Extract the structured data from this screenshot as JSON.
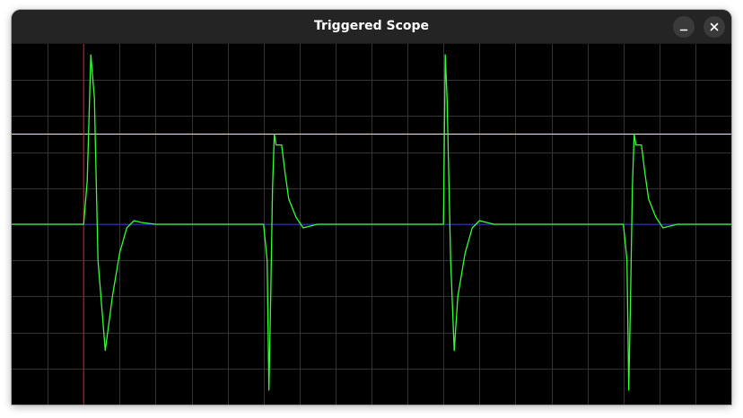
{
  "window": {
    "title": "Triggered Scope"
  },
  "titlebar_buttons": [
    {
      "name": "minimize",
      "icon": "minimize-icon"
    },
    {
      "name": "close",
      "icon": "close-icon"
    }
  ],
  "scope": {
    "background": "#000000",
    "grid_color": "#333333",
    "trace_color": "#33ff33",
    "baseline_color": "#2222ee",
    "trigger_level_color": "#ffff66",
    "trigger_position_color": "#dd1111",
    "grid_divisions": {
      "x": 20,
      "y": 10
    },
    "trigger_level_fraction": 0.75,
    "trigger_position_fraction": 0.1
  },
  "chart_data": {
    "type": "line",
    "grid": true,
    "xlim": [
      0,
      20
    ],
    "ylim": [
      -5,
      5
    ],
    "series": [
      {
        "x": [
          0,
          2.0,
          2.1,
          2.2,
          2.3,
          2.4,
          2.6,
          2.8,
          3.0,
          3.2,
          3.4,
          3.6,
          4.0,
          4.5,
          5.0,
          7.0,
          7.1,
          7.15,
          7.2,
          7.25,
          7.3,
          7.35,
          7.4,
          7.5,
          7.6,
          7.7,
          7.9,
          8.1,
          8.3,
          8.5,
          9.0,
          9.5,
          10.0,
          12.0,
          12.05,
          12.1,
          12.2,
          12.3,
          12.4,
          12.6,
          12.8,
          13.0,
          13.2,
          13.4,
          13.6,
          14.0,
          14.5,
          15.0,
          17.0,
          17.1,
          17.15,
          17.2,
          17.25,
          17.3,
          17.35,
          17.4,
          17.5,
          17.6,
          17.7,
          17.9,
          18.1,
          18.3,
          18.5,
          19.0,
          19.5,
          20.0
        ],
        "values": [
          0.0,
          0.0,
          1.2,
          4.7,
          3.5,
          -1.0,
          -3.5,
          -2.0,
          -0.8,
          -0.1,
          0.1,
          0.05,
          0.0,
          0.0,
          0.0,
          0.0,
          -1.0,
          -4.6,
          -2.0,
          1.0,
          2.5,
          2.2,
          2.2,
          2.2,
          1.4,
          0.7,
          0.2,
          -0.1,
          -0.05,
          0.0,
          0.0,
          0.0,
          0.0,
          0.0,
          4.7,
          3.5,
          -1.0,
          -3.5,
          -2.0,
          -0.8,
          -0.1,
          0.1,
          0.05,
          0.0,
          0.0,
          0.0,
          0.0,
          0.0,
          0.0,
          -1.0,
          -4.6,
          -2.0,
          1.0,
          2.5,
          2.2,
          2.2,
          2.2,
          1.4,
          0.7,
          0.2,
          -0.1,
          -0.05,
          0.0,
          0.0,
          0.0,
          0.0
        ]
      }
    ]
  }
}
